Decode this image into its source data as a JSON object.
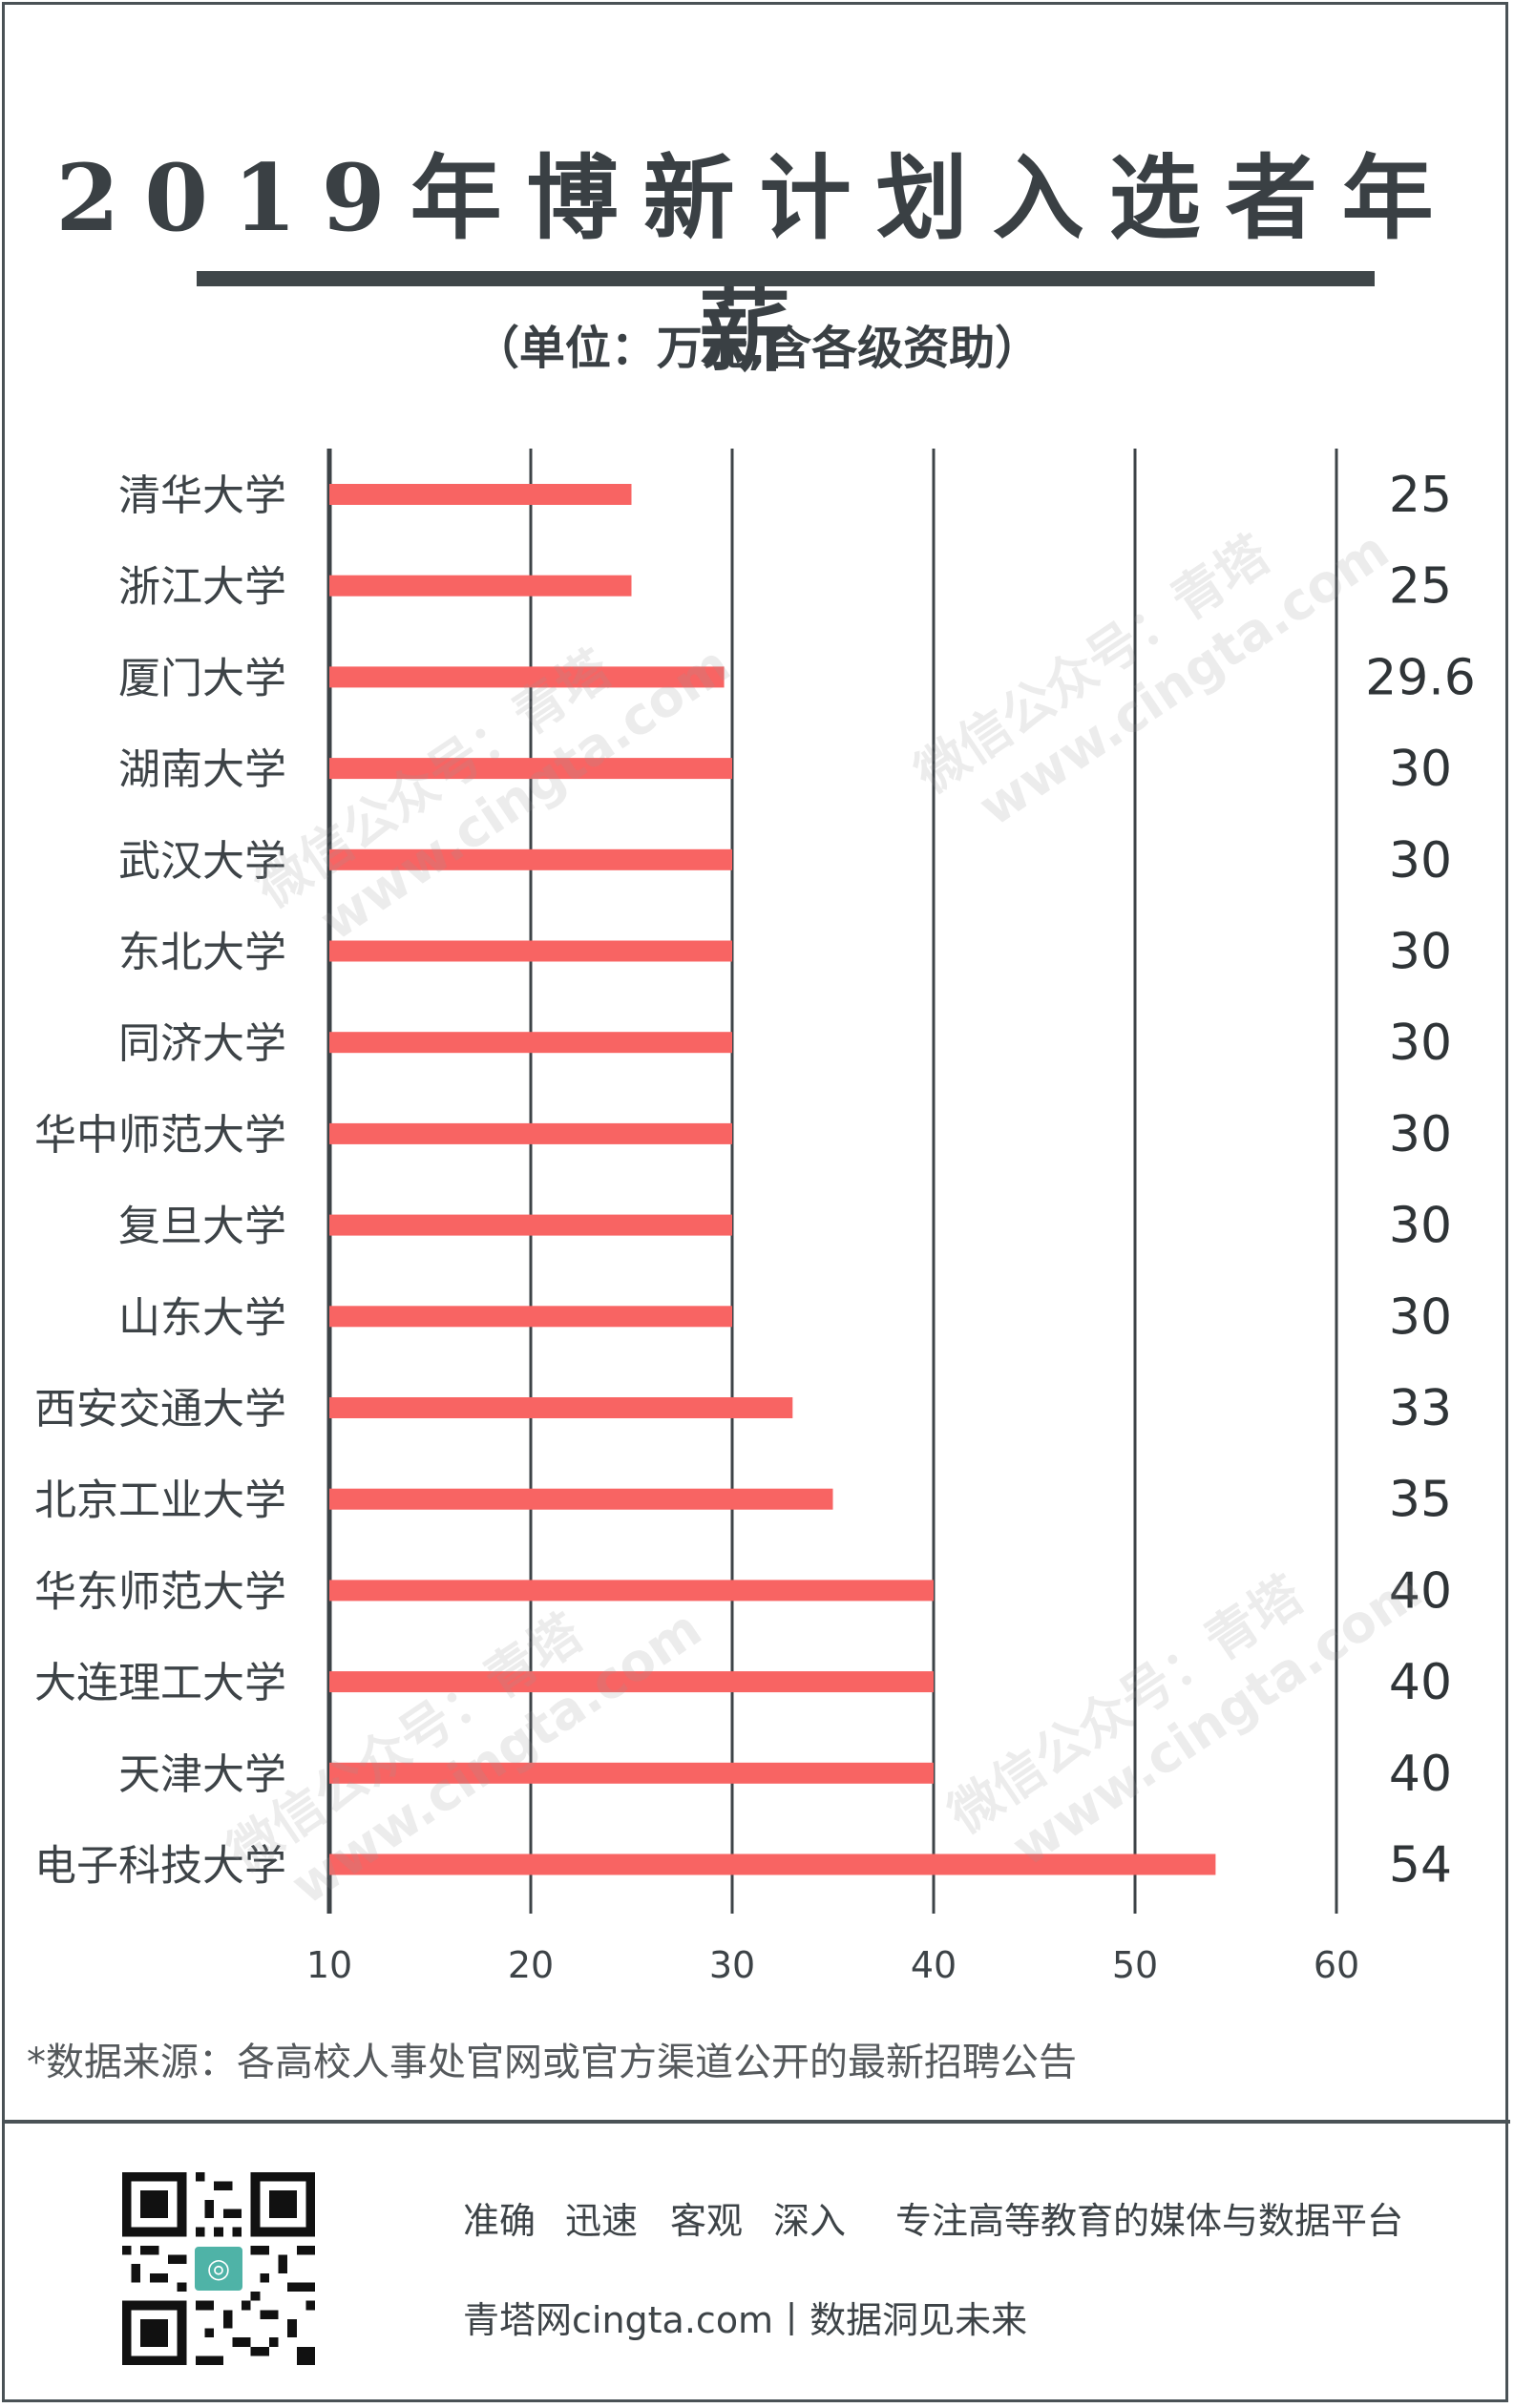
{
  "title": "2019年博新计划入选者年薪",
  "subtitle": "（单位：万元,含各级资助）",
  "chart_data": {
    "type": "bar",
    "orientation": "horizontal",
    "categories": [
      "清华大学",
      "浙江大学",
      "厦门大学",
      "湖南大学",
      "武汉大学",
      "东北大学",
      "同济大学",
      "华中师范大学",
      "复旦大学",
      "山东大学",
      "西安交通大学",
      "北京工业大学",
      "华东师范大学",
      "大连理工大学",
      "天津大学",
      "电子科技大学"
    ],
    "values": [
      25,
      25,
      29.6,
      30,
      30,
      30,
      30,
      30,
      30,
      30,
      33,
      35,
      40,
      40,
      40,
      54
    ],
    "value_labels": [
      "25",
      "25",
      "29.6",
      "30",
      "30",
      "30",
      "30",
      "30",
      "30",
      "30",
      "33",
      "35",
      "40",
      "40",
      "40",
      "54"
    ],
    "xlim": [
      10,
      60
    ],
    "xticks": [
      "10",
      "20",
      "30",
      "40",
      "50",
      "60"
    ],
    "grid": true,
    "bar_color": "#f86463",
    "grid_color": "#3d4347"
  },
  "watermark": {
    "line1": "微信公众号：青塔",
    "line2": "www.cingta.com"
  },
  "source": "*数据来源：各高校人事处官网或官方渠道公开的最新招聘公告",
  "footer": {
    "tags": [
      "准确",
      "迅速",
      "客观",
      "深入",
      "专注高等教育的媒体与数据平台"
    ],
    "slogan": "青塔网cingta.com丨数据洞见未来"
  },
  "colors": {
    "text": "#3d4347",
    "bar": "#f86463",
    "frame": "#4a5256",
    "qr_accent": "#4fb3a7"
  }
}
